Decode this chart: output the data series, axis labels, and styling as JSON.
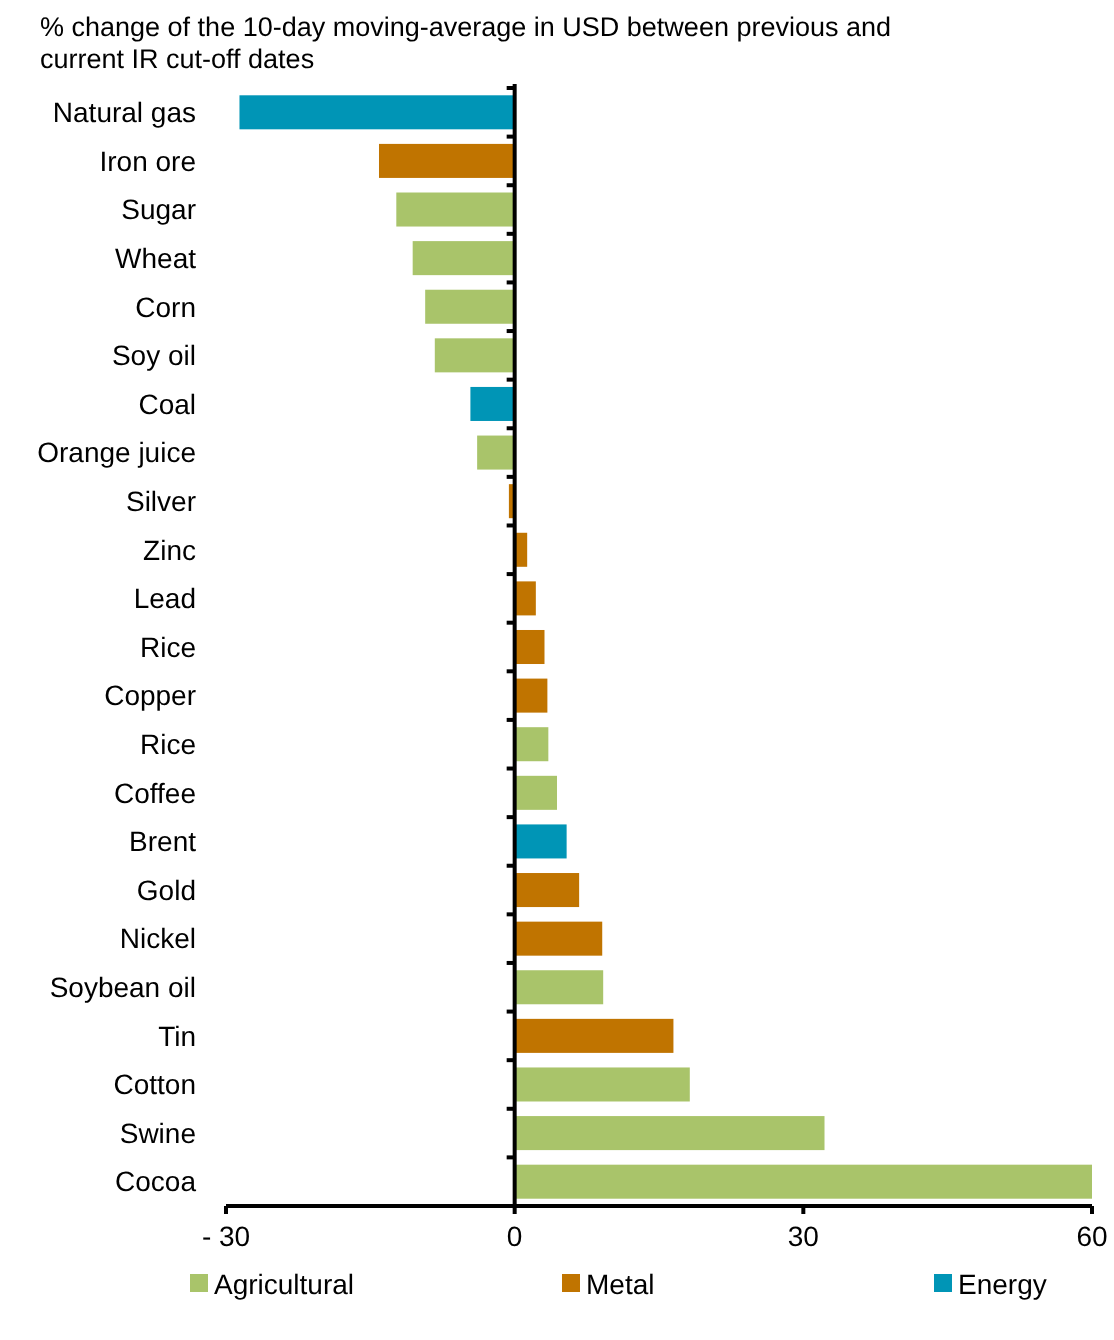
{
  "chart_data": {
    "type": "bar",
    "orientation": "horizontal",
    "title": "% change of the 10-day moving-average in USD between previous and current IR cut-off dates",
    "categories": [
      "Natural gas",
      "Iron ore",
      "Sugar",
      "Wheat",
      "Corn",
      "Soy oil",
      "Coal",
      "Orange juice",
      "Silver",
      "Zinc",
      "Lead",
      "Rice",
      "Copper",
      "Rice",
      "Coffee",
      "Brent",
      "Gold",
      "Nickel",
      "Soybean oil",
      "Tin",
      "Cotton",
      "Swine",
      "Cocoa"
    ],
    "series": [
      {
        "name": "Agricultural",
        "color": "#a9c46a",
        "values": [
          null,
          null,
          -12.3,
          -10.6,
          -9.3,
          -8.3,
          null,
          -3.9,
          null,
          null,
          null,
          null,
          null,
          3.5,
          4.4,
          null,
          null,
          null,
          9.2,
          null,
          18.2,
          32.2,
          60
        ]
      },
      {
        "name": "Metal",
        "color": "#c07400",
        "values": [
          null,
          -14.1,
          null,
          null,
          null,
          null,
          null,
          null,
          -0.6,
          1.3,
          2.2,
          3.1,
          3.4,
          null,
          null,
          null,
          6.7,
          9.1,
          null,
          16.5,
          null,
          null,
          null
        ]
      },
      {
        "name": "Energy",
        "color": "#0095b6",
        "values": [
          -28.6,
          null,
          null,
          null,
          null,
          null,
          -4.6,
          null,
          null,
          null,
          null,
          null,
          null,
          null,
          null,
          5.4,
          null,
          null,
          null,
          null,
          null,
          null,
          null
        ]
      }
    ],
    "xlim": [
      -30,
      60
    ],
    "xticks": [
      {
        "value": -30,
        "label": "- 30"
      },
      0,
      30,
      60
    ],
    "legend": "bottom"
  }
}
